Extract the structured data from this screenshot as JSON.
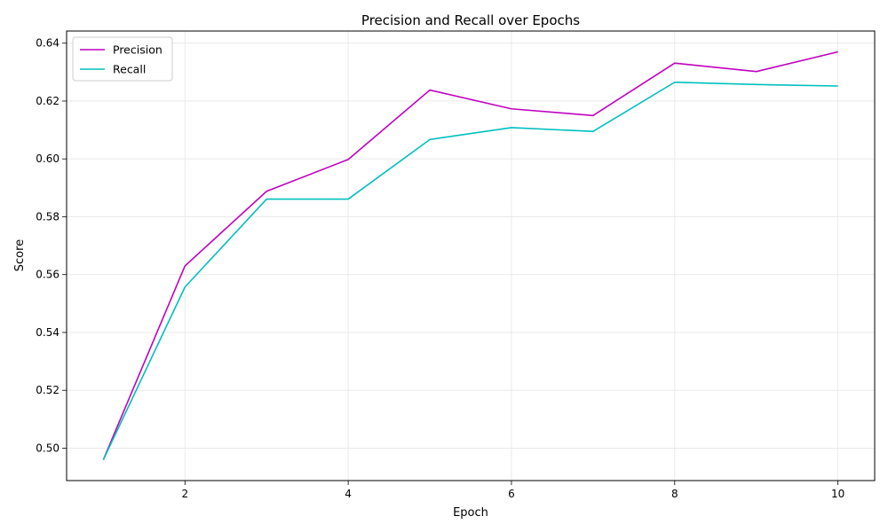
{
  "chart_data": {
    "type": "line",
    "title": "Precision and Recall over Epochs",
    "xlabel": "Epoch",
    "ylabel": "Score",
    "x": [
      1,
      2,
      3,
      4,
      5,
      6,
      7,
      8,
      9,
      10
    ],
    "xlim": [
      0.55,
      10.45
    ],
    "ylim": [
      0.4888,
      0.6442
    ],
    "xticks": [
      2,
      4,
      6,
      8,
      10
    ],
    "yticks": [
      0.5,
      0.52,
      0.54,
      0.56,
      0.58,
      0.6,
      0.62,
      0.64
    ],
    "grid": true,
    "legend_position": "top-left",
    "series": [
      {
        "name": "Precision",
        "color": "#bf00bf",
        "values": [
          0.496,
          0.563,
          0.5888,
          0.5998,
          0.6238,
          0.6173,
          0.615,
          0.6331,
          0.6302,
          0.637
        ]
      },
      {
        "name": "Recall",
        "color": "#00bfbf",
        "values": [
          0.496,
          0.5557,
          0.5861,
          0.5861,
          0.6067,
          0.6108,
          0.6095,
          0.6265,
          0.6257,
          0.6252
        ]
      }
    ]
  }
}
